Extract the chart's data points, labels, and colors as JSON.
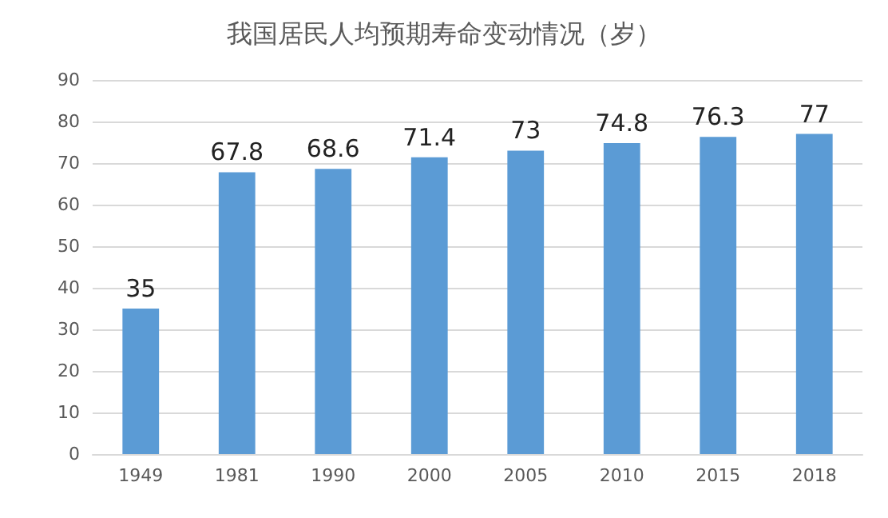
{
  "chart_data": {
    "type": "bar",
    "title": "我国居民人均预期寿命变动情况（岁）",
    "categories": [
      "1949",
      "1981",
      "1990",
      "2000",
      "2005",
      "2010",
      "2015",
      "2018"
    ],
    "values": [
      35,
      67.8,
      68.6,
      71.4,
      73,
      74.8,
      76.3,
      77
    ],
    "color": "#5b9bd5",
    "ylim": [
      0,
      90
    ],
    "yticks": [
      0,
      10,
      20,
      30,
      40,
      50,
      60,
      70,
      80,
      90
    ],
    "grid": "y",
    "data_labels": true
  }
}
